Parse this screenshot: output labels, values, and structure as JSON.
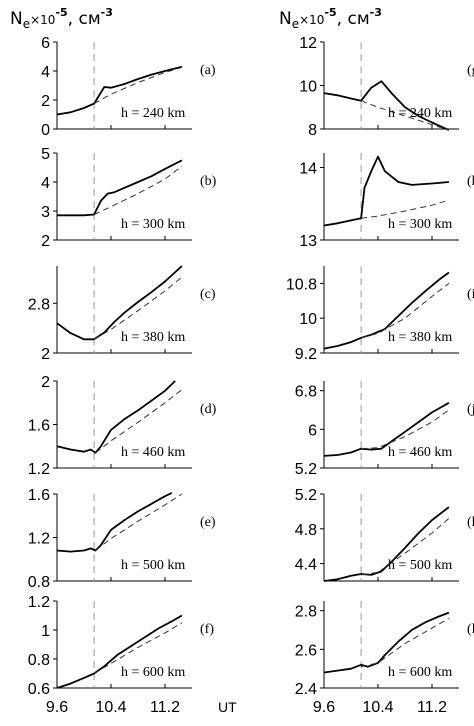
{
  "header": {
    "left": {
      "base": "N",
      "sub": "e",
      "mult": "×10",
      "exp": "-5",
      "unit": ", см",
      "unit_exp": "-3"
    },
    "right": {
      "base": "N",
      "sub": "e",
      "mult": "×10",
      "exp": "-5",
      "unit": ", см",
      "unit_exp": "-3"
    }
  },
  "x_axis": {
    "label": "UT",
    "ticks": [
      "9.6",
      "10.4",
      "11.2"
    ],
    "tick_values": [
      9.6,
      10.4,
      11.2
    ],
    "range": [
      9.6,
      11.6
    ],
    "dashed_vline_ut": 10.15
  },
  "chart_data": [
    {
      "type": "line",
      "panel": "(a)",
      "altitude_label": "h = 240 km",
      "ylim": [
        0,
        6
      ],
      "yticks": [
        "0",
        "2",
        "4",
        "6"
      ],
      "ytick_values": [
        0,
        2,
        4,
        6
      ],
      "series": [
        {
          "style": "solid",
          "points": [
            [
              9.6,
              1.0
            ],
            [
              9.8,
              1.15
            ],
            [
              10.0,
              1.45
            ],
            [
              10.15,
              1.75
            ],
            [
              10.3,
              2.9
            ],
            [
              10.4,
              2.85
            ],
            [
              10.6,
              3.1
            ],
            [
              10.8,
              3.45
            ],
            [
              11.0,
              3.75
            ],
            [
              11.2,
              4.0
            ],
            [
              11.45,
              4.3
            ]
          ]
        },
        {
          "style": "dashed",
          "points": [
            [
              10.15,
              1.75
            ],
            [
              10.4,
              2.4
            ],
            [
              10.8,
              3.2
            ],
            [
              11.2,
              3.9
            ],
            [
              11.45,
              4.25
            ]
          ]
        }
      ]
    },
    {
      "type": "line",
      "panel": "(b)",
      "altitude_label": "h = 300 km",
      "ylim": [
        2,
        5
      ],
      "yticks": [
        "2",
        "3",
        "4",
        "5"
      ],
      "ytick_values": [
        2,
        3,
        4,
        5
      ],
      "series": [
        {
          "style": "solid",
          "points": [
            [
              9.6,
              2.85
            ],
            [
              9.8,
              2.85
            ],
            [
              10.0,
              2.85
            ],
            [
              10.15,
              2.88
            ],
            [
              10.25,
              3.35
            ],
            [
              10.35,
              3.6
            ],
            [
              10.45,
              3.65
            ],
            [
              10.6,
              3.8
            ],
            [
              10.8,
              4.0
            ],
            [
              11.0,
              4.2
            ],
            [
              11.2,
              4.45
            ],
            [
              11.45,
              4.75
            ]
          ]
        },
        {
          "style": "dashed",
          "points": [
            [
              10.15,
              2.88
            ],
            [
              10.4,
              3.15
            ],
            [
              10.8,
              3.6
            ],
            [
              11.2,
              4.1
            ],
            [
              11.45,
              4.55
            ]
          ]
        }
      ]
    },
    {
      "type": "line",
      "panel": "(c)",
      "altitude_label": "h = 380 km",
      "ylim": [
        2,
        3.4
      ],
      "yticks": [
        "2",
        "2.8"
      ],
      "ytick_values": [
        2,
        2.8
      ],
      "series": [
        {
          "style": "solid",
          "points": [
            [
              9.6,
              2.48
            ],
            [
              9.8,
              2.32
            ],
            [
              10.0,
              2.22
            ],
            [
              10.15,
              2.22
            ],
            [
              10.3,
              2.33
            ],
            [
              10.45,
              2.5
            ],
            [
              10.6,
              2.65
            ],
            [
              10.8,
              2.82
            ],
            [
              11.0,
              2.98
            ],
            [
              11.2,
              3.15
            ],
            [
              11.45,
              3.4
            ]
          ]
        },
        {
          "style": "dashed",
          "points": [
            [
              10.15,
              2.22
            ],
            [
              10.4,
              2.38
            ],
            [
              10.8,
              2.68
            ],
            [
              11.2,
              3.0
            ],
            [
              11.45,
              3.22
            ]
          ]
        }
      ]
    },
    {
      "type": "line",
      "panel": "(d)",
      "altitude_label": "h = 460 km",
      "ylim": [
        1.2,
        2.0
      ],
      "yticks": [
        "1.2",
        "1.6",
        "2"
      ],
      "ytick_values": [
        1.2,
        1.6,
        2.0
      ],
      "series": [
        {
          "style": "solid",
          "points": [
            [
              9.6,
              1.4
            ],
            [
              9.8,
              1.37
            ],
            [
              10.0,
              1.35
            ],
            [
              10.1,
              1.37
            ],
            [
              10.17,
              1.34
            ],
            [
              10.25,
              1.4
            ],
            [
              10.4,
              1.55
            ],
            [
              10.6,
              1.65
            ],
            [
              10.8,
              1.73
            ],
            [
              11.0,
              1.82
            ],
            [
              11.2,
              1.91
            ],
            [
              11.35,
              2.0
            ]
          ]
        },
        {
          "style": "dashed",
          "points": [
            [
              10.17,
              1.34
            ],
            [
              10.4,
              1.45
            ],
            [
              10.8,
              1.62
            ],
            [
              11.2,
              1.8
            ],
            [
              11.45,
              1.92
            ]
          ]
        }
      ]
    },
    {
      "type": "line",
      "panel": "(e)",
      "altitude_label": "h = 500 km",
      "ylim": [
        0.8,
        1.6
      ],
      "yticks": [
        "0.8",
        "1.2",
        "1.6"
      ],
      "ytick_values": [
        0.8,
        1.2,
        1.6
      ],
      "series": [
        {
          "style": "solid",
          "points": [
            [
              9.6,
              1.08
            ],
            [
              9.8,
              1.07
            ],
            [
              10.0,
              1.08
            ],
            [
              10.1,
              1.1
            ],
            [
              10.17,
              1.08
            ],
            [
              10.25,
              1.13
            ],
            [
              10.4,
              1.27
            ],
            [
              10.6,
              1.36
            ],
            [
              10.8,
              1.44
            ],
            [
              11.0,
              1.51
            ],
            [
              11.2,
              1.58
            ],
            [
              11.3,
              1.61
            ]
          ]
        },
        {
          "style": "dashed",
          "points": [
            [
              10.17,
              1.08
            ],
            [
              10.4,
              1.19
            ],
            [
              10.8,
              1.35
            ],
            [
              11.2,
              1.5
            ],
            [
              11.45,
              1.6
            ]
          ]
        }
      ]
    },
    {
      "type": "line",
      "panel": "(f)",
      "altitude_label": "h = 600 km",
      "ylim": [
        0.6,
        1.2
      ],
      "yticks": [
        "0.6",
        "0.8",
        "1",
        "1.2"
      ],
      "ytick_values": [
        0.6,
        0.8,
        1.0,
        1.2
      ],
      "series": [
        {
          "style": "solid",
          "points": [
            [
              9.6,
              0.6
            ],
            [
              9.8,
              0.63
            ],
            [
              10.0,
              0.67
            ],
            [
              10.15,
              0.7
            ],
            [
              10.3,
              0.75
            ],
            [
              10.5,
              0.83
            ],
            [
              10.7,
              0.89
            ],
            [
              10.9,
              0.95
            ],
            [
              11.1,
              1.01
            ],
            [
              11.3,
              1.06
            ],
            [
              11.45,
              1.1
            ]
          ]
        },
        {
          "style": "dashed",
          "points": [
            [
              10.15,
              0.7
            ],
            [
              10.4,
              0.77
            ],
            [
              10.8,
              0.88
            ],
            [
              11.2,
              0.98
            ],
            [
              11.45,
              1.05
            ]
          ]
        }
      ]
    },
    {
      "type": "line",
      "panel": "(g)",
      "altitude_label": "h = 240 km",
      "ylim": [
        8,
        12
      ],
      "yticks": [
        "8",
        "10",
        "12"
      ],
      "ytick_values": [
        8,
        10,
        12
      ],
      "series": [
        {
          "style": "solid",
          "points": [
            [
              9.6,
              9.65
            ],
            [
              9.8,
              9.55
            ],
            [
              10.0,
              9.4
            ],
            [
              10.15,
              9.3
            ],
            [
              10.3,
              9.9
            ],
            [
              10.45,
              10.2
            ],
            [
              10.6,
              9.65
            ],
            [
              10.8,
              9.0
            ],
            [
              11.0,
              8.6
            ],
            [
              11.2,
              8.3
            ],
            [
              11.45,
              7.95
            ]
          ]
        },
        {
          "style": "dashed",
          "points": [
            [
              10.15,
              9.3
            ],
            [
              10.4,
              9.0
            ],
            [
              10.8,
              8.6
            ],
            [
              11.2,
              8.2
            ],
            [
              11.45,
              7.95
            ]
          ]
        }
      ]
    },
    {
      "type": "line",
      "panel": "(h)",
      "altitude_label": "h = 300 km",
      "ylim": [
        13,
        14.2
      ],
      "yticks": [
        "13",
        "14"
      ],
      "ytick_values": [
        13,
        14
      ],
      "series": [
        {
          "style": "solid",
          "points": [
            [
              9.6,
              13.2
            ],
            [
              9.8,
              13.23
            ],
            [
              10.0,
              13.27
            ],
            [
              10.15,
              13.3
            ],
            [
              10.2,
              13.72
            ],
            [
              10.3,
              13.95
            ],
            [
              10.4,
              14.15
            ],
            [
              10.5,
              13.95
            ],
            [
              10.7,
              13.8
            ],
            [
              10.9,
              13.76
            ],
            [
              11.2,
              13.78
            ],
            [
              11.45,
              13.8
            ]
          ]
        },
        {
          "style": "dashed",
          "points": [
            [
              10.15,
              13.3
            ],
            [
              10.4,
              13.33
            ],
            [
              10.8,
              13.4
            ],
            [
              11.2,
              13.48
            ],
            [
              11.45,
              13.55
            ]
          ]
        }
      ]
    },
    {
      "type": "line",
      "panel": "(i)",
      "altitude_label": "h = 380 km",
      "ylim": [
        9.2,
        11.2
      ],
      "yticks": [
        "9.2",
        "10",
        "10.8"
      ],
      "ytick_values": [
        9.2,
        10.0,
        10.8
      ],
      "series": [
        {
          "style": "solid",
          "points": [
            [
              9.6,
              9.3
            ],
            [
              9.8,
              9.36
            ],
            [
              10.0,
              9.45
            ],
            [
              10.15,
              9.55
            ],
            [
              10.3,
              9.62
            ],
            [
              10.5,
              9.75
            ],
            [
              10.7,
              10.05
            ],
            [
              10.9,
              10.35
            ],
            [
              11.1,
              10.62
            ],
            [
              11.3,
              10.88
            ],
            [
              11.45,
              11.05
            ]
          ]
        },
        {
          "style": "dashed",
          "points": [
            [
              10.15,
              9.55
            ],
            [
              10.4,
              9.65
            ],
            [
              10.8,
              10.0
            ],
            [
              11.2,
              10.5
            ],
            [
              11.45,
              10.8
            ]
          ]
        }
      ]
    },
    {
      "type": "line",
      "panel": "(j)",
      "altitude_label": "h = 460 km",
      "ylim": [
        5.2,
        7.0
      ],
      "yticks": [
        "5.2",
        "6",
        "6.8"
      ],
      "ytick_values": [
        5.2,
        6.0,
        6.8
      ],
      "series": [
        {
          "style": "solid",
          "points": [
            [
              9.6,
              5.45
            ],
            [
              9.8,
              5.47
            ],
            [
              10.0,
              5.52
            ],
            [
              10.15,
              5.6
            ],
            [
              10.3,
              5.58
            ],
            [
              10.45,
              5.6
            ],
            [
              10.6,
              5.75
            ],
            [
              10.8,
              5.95
            ],
            [
              11.0,
              6.15
            ],
            [
              11.2,
              6.35
            ],
            [
              11.45,
              6.55
            ]
          ]
        },
        {
          "style": "dashed",
          "points": [
            [
              10.15,
              5.6
            ],
            [
              10.4,
              5.62
            ],
            [
              10.8,
              5.85
            ],
            [
              11.2,
              6.15
            ],
            [
              11.45,
              6.4
            ]
          ]
        }
      ]
    },
    {
      "type": "line",
      "panel": "(k)",
      "altitude_label": "h = 500 km",
      "ylim": [
        4.2,
        5.2
      ],
      "yticks": [
        "4.4",
        "4.8",
        "5.2"
      ],
      "ytick_values": [
        4.4,
        4.8,
        5.2
      ],
      "series": [
        {
          "style": "solid",
          "points": [
            [
              9.6,
              4.2
            ],
            [
              9.8,
              4.22
            ],
            [
              10.0,
              4.26
            ],
            [
              10.15,
              4.28
            ],
            [
              10.3,
              4.27
            ],
            [
              10.45,
              4.31
            ],
            [
              10.6,
              4.42
            ],
            [
              10.8,
              4.58
            ],
            [
              11.0,
              4.75
            ],
            [
              11.2,
              4.9
            ],
            [
              11.45,
              5.05
            ]
          ]
        },
        {
          "style": "dashed",
          "points": [
            [
              10.15,
              4.27
            ],
            [
              10.4,
              4.3
            ],
            [
              10.8,
              4.52
            ],
            [
              11.2,
              4.75
            ],
            [
              11.45,
              4.92
            ]
          ]
        }
      ]
    },
    {
      "type": "line",
      "panel": "(l)",
      "altitude_label": "h = 600 km",
      "ylim": [
        2.4,
        2.85
      ],
      "yticks": [
        "2.4",
        "2.6",
        "2.8"
      ],
      "ytick_values": [
        2.4,
        2.6,
        2.8
      ],
      "series": [
        {
          "style": "solid",
          "points": [
            [
              9.6,
              2.48
            ],
            [
              9.8,
              2.49
            ],
            [
              10.0,
              2.5
            ],
            [
              10.15,
              2.52
            ],
            [
              10.25,
              2.51
            ],
            [
              10.4,
              2.53
            ],
            [
              10.5,
              2.57
            ],
            [
              10.7,
              2.64
            ],
            [
              10.9,
              2.7
            ],
            [
              11.1,
              2.74
            ],
            [
              11.3,
              2.77
            ],
            [
              11.45,
              2.79
            ]
          ]
        },
        {
          "style": "dashed",
          "points": [
            [
              10.15,
              2.51
            ],
            [
              10.4,
              2.53
            ],
            [
              10.8,
              2.63
            ],
            [
              11.2,
              2.71
            ],
            [
              11.45,
              2.76
            ]
          ]
        }
      ]
    }
  ]
}
